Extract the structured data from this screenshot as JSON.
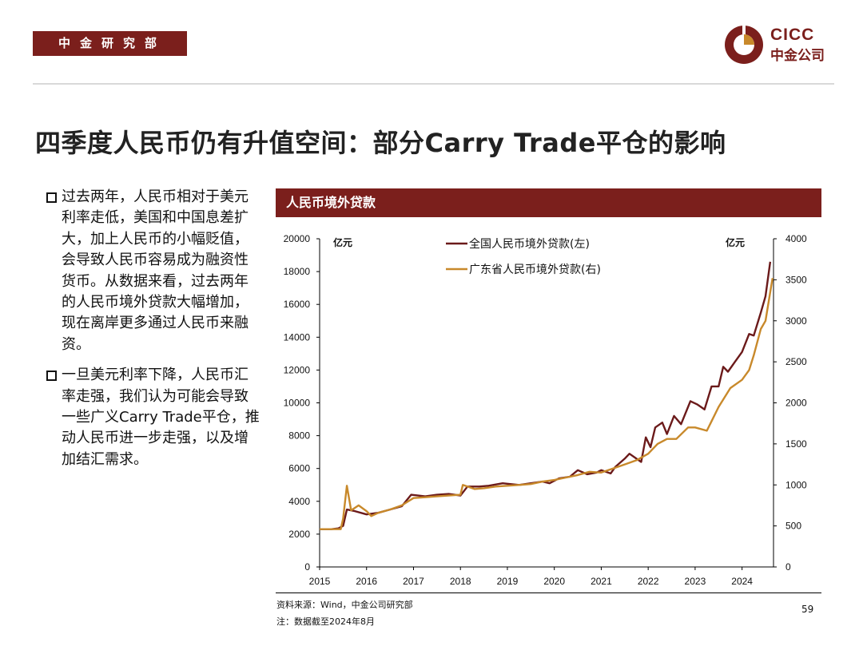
{
  "header": {
    "dept_label": "中金研究部",
    "logo": {
      "latin": "CICC",
      "chinese": "中金公司"
    }
  },
  "title": "四季度人民币仍有升值空间：部分Carry Trade平仓的影响",
  "bullets": [
    "过去两年，人民币相对于美元利率走低，美国和中国息差扩大，加上人民币的小幅贬值，会导致人民币容易成为融资性货币。从数据来看，过去两年的人民币境外贷款大幅增加，现在离岸更多通过人民币来融资。",
    "一旦美元利率下降，人民币汇率走强，我们认为可能会导致一些广义Carry Trade平仓，推动人民币进一步走强，以及增加结汇需求。"
  ],
  "panel_title": "人民币境外贷款",
  "colors": {
    "brand": "#7b1f1c",
    "series_national": "#6b1a1a",
    "series_guangdong": "#c8892b"
  },
  "chart_data": {
    "type": "line",
    "title": "人民币境外贷款",
    "left_unit": "亿元",
    "right_unit": "亿元",
    "x_ticks": [
      "2015",
      "2016",
      "2017",
      "2018",
      "2019",
      "2020",
      "2021",
      "2022",
      "2023",
      "2024"
    ],
    "x_range": [
      2015.0,
      2024.67
    ],
    "y_left": {
      "range": [
        0,
        20000
      ],
      "ticks": [
        "0",
        "2000",
        "4000",
        "6000",
        "8000",
        "10000",
        "12000",
        "14000",
        "16000",
        "18000",
        "20000"
      ]
    },
    "y_right": {
      "range": [
        0,
        4000
      ],
      "ticks": [
        "0",
        "500",
        "1000",
        "1500",
        "2000",
        "2500",
        "3000",
        "3500",
        "4000"
      ]
    },
    "legend_position": "top-center",
    "grid": false,
    "series": [
      {
        "name": "全国人民币境外贷款(左)",
        "axis": "left",
        "color": "#6b1a1a",
        "points": [
          [
            2015.0,
            2300
          ],
          [
            2015.25,
            2300
          ],
          [
            2015.4,
            2350
          ],
          [
            2015.5,
            2500
          ],
          [
            2015.58,
            3500
          ],
          [
            2015.75,
            3400
          ],
          [
            2016.0,
            3200
          ],
          [
            2016.25,
            3300
          ],
          [
            2016.5,
            3500
          ],
          [
            2016.75,
            3700
          ],
          [
            2016.95,
            4400
          ],
          [
            2017.25,
            4300
          ],
          [
            2017.5,
            4400
          ],
          [
            2017.75,
            4450
          ],
          [
            2018.0,
            4350
          ],
          [
            2018.15,
            4900
          ],
          [
            2018.4,
            4900
          ],
          [
            2018.6,
            4950
          ],
          [
            2018.9,
            5100
          ],
          [
            2019.25,
            5000
          ],
          [
            2019.5,
            5100
          ],
          [
            2019.75,
            5200
          ],
          [
            2019.9,
            5100
          ],
          [
            2020.1,
            5400
          ],
          [
            2020.33,
            5500
          ],
          [
            2020.5,
            5900
          ],
          [
            2020.7,
            5650
          ],
          [
            2020.9,
            5750
          ],
          [
            2021.0,
            5900
          ],
          [
            2021.2,
            5700
          ],
          [
            2021.3,
            6100
          ],
          [
            2021.5,
            6600
          ],
          [
            2021.6,
            6900
          ],
          [
            2021.75,
            6600
          ],
          [
            2021.85,
            6400
          ],
          [
            2021.95,
            7900
          ],
          [
            2022.05,
            7300
          ],
          [
            2022.15,
            8500
          ],
          [
            2022.3,
            8800
          ],
          [
            2022.4,
            8100
          ],
          [
            2022.55,
            9200
          ],
          [
            2022.7,
            8700
          ],
          [
            2022.9,
            10100
          ],
          [
            2023.05,
            9900
          ],
          [
            2023.2,
            9600
          ],
          [
            2023.35,
            11000
          ],
          [
            2023.5,
            11000
          ],
          [
            2023.6,
            12200
          ],
          [
            2023.7,
            11900
          ],
          [
            2023.85,
            12500
          ],
          [
            2024.0,
            13100
          ],
          [
            2024.15,
            14200
          ],
          [
            2024.25,
            14100
          ],
          [
            2024.4,
            15500
          ],
          [
            2024.5,
            16500
          ],
          [
            2024.6,
            18600
          ]
        ]
      },
      {
        "name": "广东省人民币境外贷款(右)",
        "axis": "right",
        "color": "#c8892b",
        "points": [
          [
            2015.0,
            460
          ],
          [
            2015.25,
            460
          ],
          [
            2015.45,
            460
          ],
          [
            2015.5,
            590
          ],
          [
            2015.58,
            990
          ],
          [
            2015.67,
            690
          ],
          [
            2015.83,
            750
          ],
          [
            2016.0,
            680
          ],
          [
            2016.1,
            620
          ],
          [
            2016.25,
            660
          ],
          [
            2016.5,
            700
          ],
          [
            2016.75,
            750
          ],
          [
            2017.0,
            840
          ],
          [
            2017.25,
            850
          ],
          [
            2017.5,
            860
          ],
          [
            2017.75,
            870
          ],
          [
            2018.0,
            880
          ],
          [
            2018.05,
            1000
          ],
          [
            2018.3,
            950
          ],
          [
            2018.5,
            960
          ],
          [
            2018.75,
            980
          ],
          [
            2019.0,
            990
          ],
          [
            2019.25,
            1000
          ],
          [
            2019.5,
            1010
          ],
          [
            2019.75,
            1040
          ],
          [
            2020.0,
            1060
          ],
          [
            2020.25,
            1090
          ],
          [
            2020.5,
            1120
          ],
          [
            2020.75,
            1160
          ],
          [
            2021.0,
            1150
          ],
          [
            2021.25,
            1200
          ],
          [
            2021.5,
            1250
          ],
          [
            2021.75,
            1300
          ],
          [
            2022.0,
            1380
          ],
          [
            2022.2,
            1500
          ],
          [
            2022.4,
            1560
          ],
          [
            2022.6,
            1560
          ],
          [
            2022.85,
            1700
          ],
          [
            2023.0,
            1700
          ],
          [
            2023.25,
            1660
          ],
          [
            2023.5,
            1950
          ],
          [
            2023.75,
            2180
          ],
          [
            2024.0,
            2280
          ],
          [
            2024.15,
            2400
          ],
          [
            2024.25,
            2580
          ],
          [
            2024.4,
            2900
          ],
          [
            2024.5,
            3000
          ],
          [
            2024.6,
            3350
          ],
          [
            2024.65,
            3520
          ]
        ]
      }
    ]
  },
  "footer": {
    "source": "资料来源：Wind，中金公司研究部",
    "note": "注：数据截至2024年8月",
    "page_number": "59"
  }
}
